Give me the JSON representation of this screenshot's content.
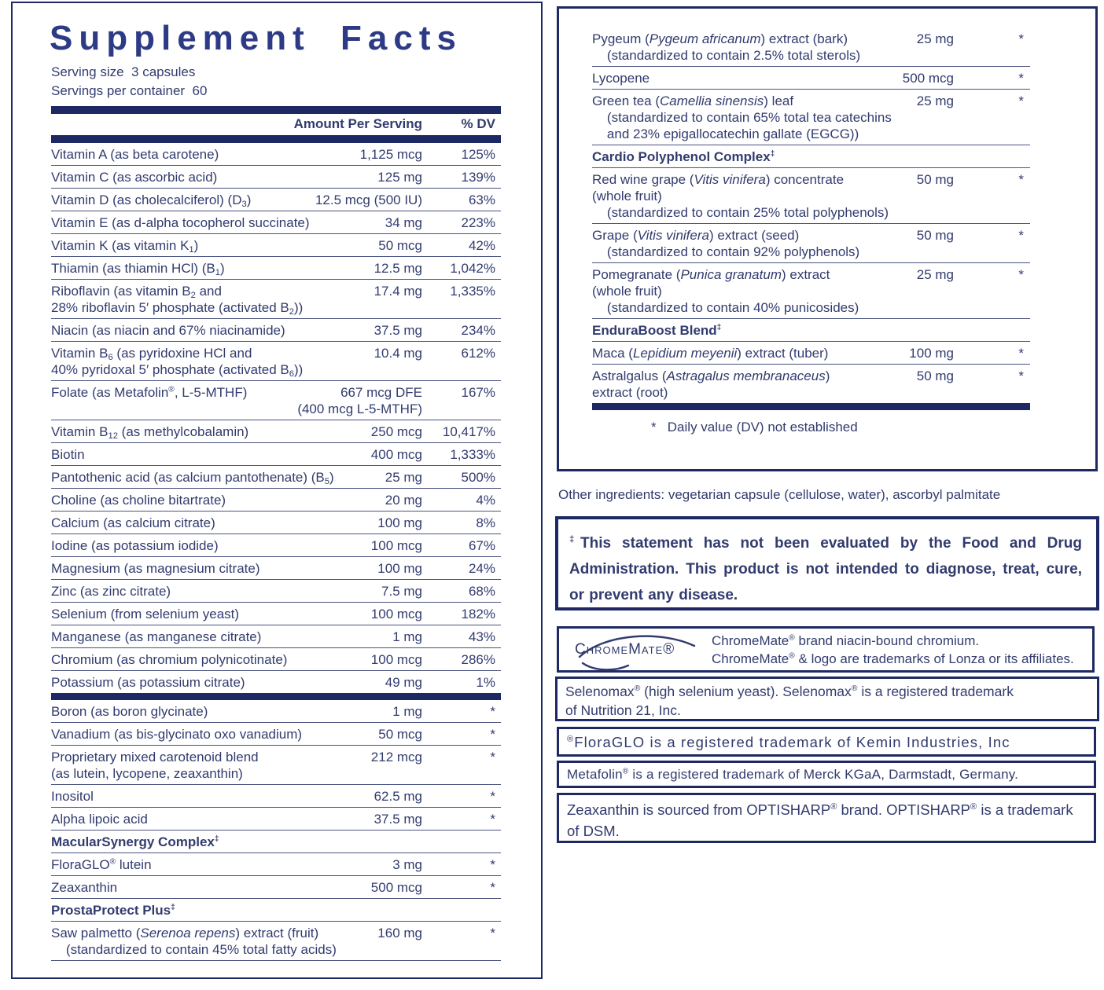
{
  "colors": {
    "ink": "#323b6e",
    "bar": "#1e2963",
    "title": "#2d3a85"
  },
  "left_panel": {
    "title": "Supplement Facts",
    "serving_size": "Serving size  3 capsules",
    "servings_per_container": "Servings per container  60",
    "col_amount": "Amount Per Serving",
    "col_dv": "% DV",
    "rows": [
      {
        "type": "item",
        "name": "Vitamin A (as beta carotene)",
        "amount": "1,125 mcg",
        "dv": "125%"
      },
      {
        "type": "item",
        "name": "Vitamin C (as ascorbic acid)",
        "amount": "125 mg",
        "dv": "139%"
      },
      {
        "type": "item",
        "name": "Vitamin D (as cholecalciferol) (D<sub>3</sub>)",
        "amount": "12.5 mcg (500 IU)",
        "dv": "63%"
      },
      {
        "type": "item",
        "name": "Vitamin E (as d-alpha tocopherol succinate)",
        "amount": "34 mg",
        "dv": "223%"
      },
      {
        "type": "item",
        "name": "Vitamin K (as vitamin K<sub>1</sub>)",
        "amount": "50 mcg",
        "dv": "42%"
      },
      {
        "type": "item",
        "name": "Thiamin (as thiamin HCl) (B<sub>1</sub>)",
        "amount": "12.5 mg",
        "dv": "1,042%"
      },
      {
        "type": "item",
        "name": "Riboflavin (as vitamin B<sub>2</sub> and\n28% riboflavin 5′ phosphate (activated B<sub>2</sub>))",
        "amount": "17.4 mg",
        "dv": "1,335%"
      },
      {
        "type": "item",
        "name": "Niacin (as niacin and 67% niacinamide)",
        "amount": "37.5 mg",
        "dv": "234%"
      },
      {
        "type": "item",
        "name": "Vitamin B<sub>6</sub> (as pyridoxine HCl and\n40% pyridoxal 5′ phosphate (activated B<sub>6</sub>))",
        "amount": "10.4 mg",
        "dv": "612%"
      },
      {
        "type": "item",
        "name": "Folate (as Metafolin<sup>®</sup>, L-5-MTHF)\n ",
        "amount": "667 mcg DFE\n(400 mcg L-5-MTHF)",
        "dv": "167%"
      },
      {
        "type": "item",
        "name": "Vitamin B<sub>12</sub> (as methylcobalamin)",
        "amount": "250 mcg",
        "dv": "10,417%"
      },
      {
        "type": "item",
        "name": "Biotin",
        "amount": "400 mcg",
        "dv": "1,333%"
      },
      {
        "type": "item",
        "name": "Pantothenic acid (as calcium pantothenate) (B<sub>5</sub>)",
        "amount": "25 mg",
        "dv": "500%"
      },
      {
        "type": "item",
        "name": "Choline (as choline bitartrate)",
        "amount": "20 mg",
        "dv": "4%"
      },
      {
        "type": "item",
        "name": "Calcium (as calcium citrate)",
        "amount": "100 mg",
        "dv": "8%"
      },
      {
        "type": "item",
        "name": "Iodine (as potassium iodide)",
        "amount": "100 mcg",
        "dv": "67%"
      },
      {
        "type": "item",
        "name": "Magnesium (as magnesium citrate)",
        "amount": "100 mg",
        "dv": "24%"
      },
      {
        "type": "item",
        "name": "Zinc (as zinc citrate)",
        "amount": "7.5 mg",
        "dv": "68%"
      },
      {
        "type": "item",
        "name": "Selenium (from selenium yeast)",
        "amount": "100 mcg",
        "dv": "182%"
      },
      {
        "type": "item",
        "name": "Manganese (as manganese citrate)",
        "amount": "1 mg",
        "dv": "43%"
      },
      {
        "type": "item",
        "name": "Chromium (as chromium polynicotinate)",
        "amount": "100 mcg",
        "dv": "286%"
      },
      {
        "type": "item",
        "name": "Potassium (as potassium citrate)",
        "amount": "49 mg",
        "dv": "1%"
      },
      {
        "type": "bar"
      },
      {
        "type": "item",
        "name": "Boron (as boron glycinate)",
        "amount": "1 mg",
        "dv": "*"
      },
      {
        "type": "item",
        "name": "Vanadium (as bis-glycinato oxo vanadium)",
        "amount": "50 mcg",
        "dv": "*"
      },
      {
        "type": "item",
        "name": "Proprietary mixed carotenoid blend\n(as lutein, lycopene, zeaxanthin)",
        "amount": "212 mcg",
        "dv": "*"
      },
      {
        "type": "item",
        "name": "Inositol",
        "amount": "62.5 mg",
        "dv": "*"
      },
      {
        "type": "item",
        "name": "Alpha lipoic acid",
        "amount": "37.5 mg",
        "dv": "*"
      },
      {
        "type": "section",
        "name": "MacularSynergy Complex<sup>‡</sup>"
      },
      {
        "type": "item",
        "name": "FloraGLO<sup>®</sup> lutein",
        "amount": "3 mg",
        "dv": "*"
      },
      {
        "type": "item",
        "name": "Zeaxanthin",
        "amount": "500 mcg",
        "dv": "*"
      },
      {
        "type": "section",
        "name": "ProstaProtect Plus<sup>‡</sup>"
      },
      {
        "type": "item",
        "name": "Saw palmetto (<i>Serenoa repens</i>) extract (fruit)\n    (standardized to contain 45% total fatty acids)",
        "amount": "160 mg",
        "dv": "*"
      }
    ]
  },
  "right_panel": {
    "rows": [
      {
        "type": "item",
        "name": "Pygeum (<i>Pygeum africanum</i>) extract (bark)\n    (standardized to contain 2.5% total sterols)",
        "amount": "25 mg",
        "dv": "*"
      },
      {
        "type": "item",
        "name": "Lycopene",
        "amount": "500 mcg",
        "dv": "*"
      },
      {
        "type": "item",
        "name": "Green tea (<i>Camellia sinensis</i>) leaf\n    (standardized to contain 65% total tea catechins\n    and 23% epigallocatechin gallate (EGCG))",
        "amount": "25 mg",
        "dv": "*"
      },
      {
        "type": "section",
        "name": "Cardio Polyphenol Complex<sup>‡</sup>"
      },
      {
        "type": "item",
        "name": "Red wine grape (<i>Vitis vinifera</i>) concentrate\n(whole fruit)\n    (standardized to contain 25% total polyphenols)",
        "amount": "50 mg",
        "dv": "*"
      },
      {
        "type": "item",
        "name": "Grape (<i>Vitis vinifera</i>) extract (seed)\n    (standardized to contain 92% polyphenols)",
        "amount": "50 mg",
        "dv": "*"
      },
      {
        "type": "item",
        "name": "Pomegranate (<i>Punica granatum</i>) extract\n(whole fruit)\n    (standardized to contain 40% punicosides)",
        "amount": "25 mg",
        "dv": "*"
      },
      {
        "type": "section",
        "name": "EnduraBoost Blend<sup>‡</sup>"
      },
      {
        "type": "item",
        "name": "Maca (<i>Lepidium meyenii</i>) extract (tuber)",
        "amount": "100 mg",
        "dv": "*"
      },
      {
        "type": "item",
        "name": "Astralgalus (<i>Astragalus membranaceus</i>)\nextract (root)",
        "amount": "50 mg",
        "dv": "*"
      },
      {
        "type": "bar"
      }
    ],
    "footnote": "*   Daily value (DV) not established"
  },
  "other_ingredients": "Other ingredients: vegetarian capsule (cellulose, water), ascorbyl palmitate",
  "fda_statement": "<sup>‡</sup>This statement has not been evaluated by the Food and Drug Administration. This product is not intended to diagnose, treat, cure, or prevent any disease.",
  "trademarks": {
    "chromemate_logo": "ChromeMate®",
    "chromemate": "ChromeMate<sup>®</sup> brand niacin-bound chromium.\nChromeMate<sup>®</sup> &amp; logo are trademarks of Lonza or its affiliates.",
    "selenomax": "Selenomax<sup>®</sup> (high selenium yeast). Selenomax<sup>®</sup> is a registered trademark\nof Nutrition 21, Inc.",
    "floraglo": "<sup>®</sup>FloraGLO is a registered trademark of Kemin Industries, Inc",
    "metafolin": "Metafolin<sup>®</sup> is a registered trademark of Merck KGaA, Darmstadt, Germany.",
    "zeaxanthin": "Zeaxanthin is sourced from OPTISHARP<sup>®</sup> brand. OPTISHARP<sup>®</sup> is a trademark\nof DSM."
  }
}
